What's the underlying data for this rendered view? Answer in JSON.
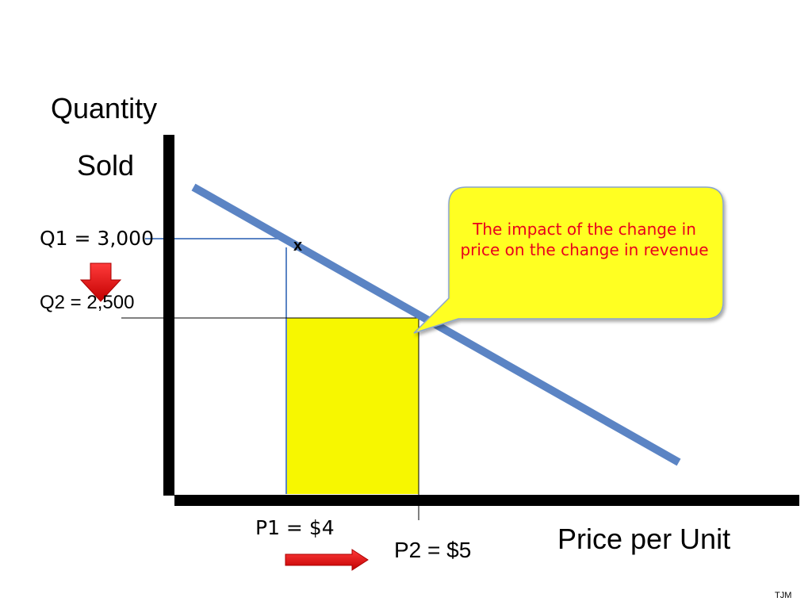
{
  "y_axis_label": {
    "line1": "Quantity",
    "line2": "Sold"
  },
  "x_axis_label": "Price per Unit",
  "q1_label": "Q1 = 3,000",
  "q2_label": "Q2 = 2,500",
  "p1_label": "P1 = $4",
  "p2_label": "P2 = $5",
  "point_marker": "x",
  "callout": "The impact of the change in price on the change in revenue",
  "credit": "TJM",
  "colors": {
    "demand_line": "#5b84c4",
    "revenue_box": "#f7f700",
    "callout_fill": "#ffff22",
    "callout_text": "#e8001c",
    "arrow": "#e8181c",
    "axis": "#000000"
  }
}
